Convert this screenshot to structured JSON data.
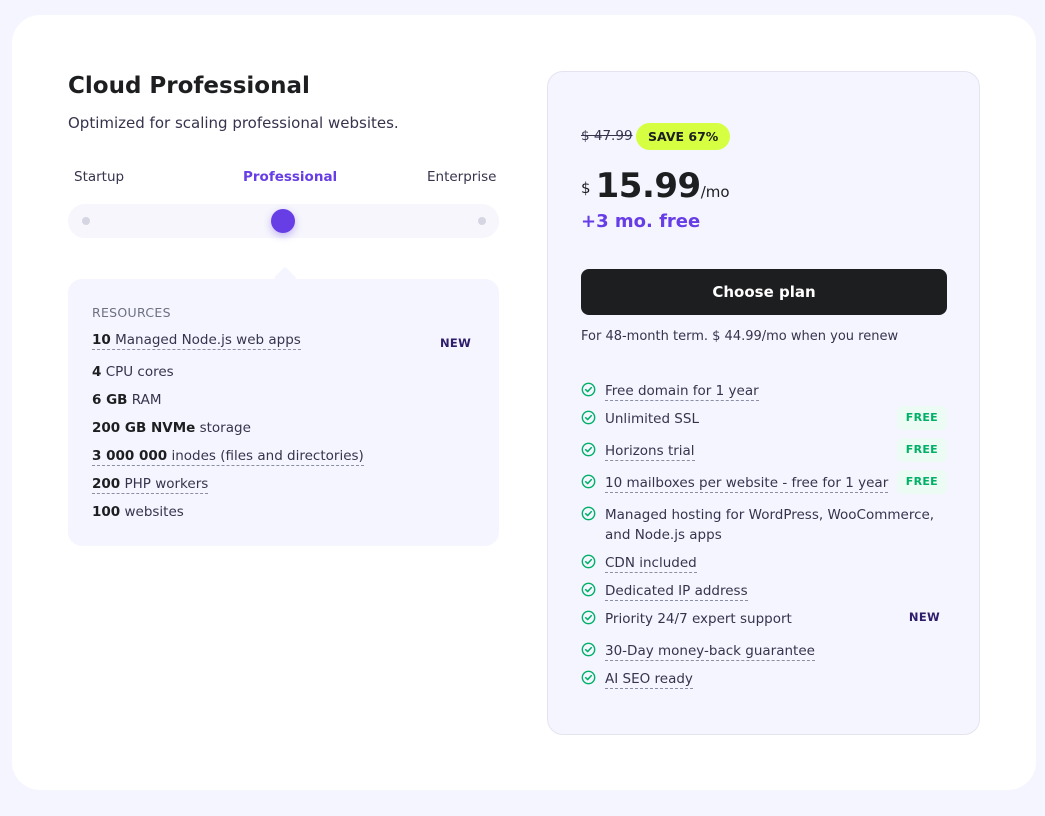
{
  "plan": {
    "title": "Cloud Professional",
    "subtitle": "Optimized for scaling professional websites."
  },
  "tiers": {
    "items": [
      "Startup",
      "Professional",
      "Enterprise"
    ],
    "selected": "Professional"
  },
  "resources": {
    "heading": "RESOURCES",
    "items": [
      {
        "bold": "10",
        "text": " Managed Node.js web apps",
        "tag": "NEW"
      },
      {
        "bold": "4",
        "text": " CPU cores"
      },
      {
        "bold": "6 GB",
        "text": " RAM"
      },
      {
        "bold": "200 GB NVMe",
        "text": " storage"
      },
      {
        "bold": "3 000 000",
        "text": " inodes (files and directories)"
      },
      {
        "bold": "200",
        "text": " PHP workers"
      },
      {
        "bold": "100",
        "text": " websites"
      }
    ]
  },
  "pricing": {
    "old_price": "$ 47.99",
    "save_badge": "SAVE 67%",
    "currency": "$",
    "amount": "15.99",
    "period": "/mo",
    "bonus": "+3 mo. free",
    "cta_label": "Choose plan",
    "term_note": "For 48-month term. $ 44.99/mo when you renew"
  },
  "features": [
    {
      "text": "Free domain for 1 year"
    },
    {
      "text": "Unlimited SSL",
      "tag": "FREE"
    },
    {
      "text": "Horizons trial",
      "tag": "FREE"
    },
    {
      "text": "10 mailboxes per website - free for 1 year",
      "tag": "FREE"
    },
    {
      "text": "Managed hosting for WordPress, WooCommerce, and Node.js apps"
    },
    {
      "text": "CDN included"
    },
    {
      "text": "Dedicated IP address"
    },
    {
      "text": "Priority 24/7 expert support",
      "tag": "NEW"
    },
    {
      "text": "30-Day money-back guarantee"
    },
    {
      "text": "AI SEO ready"
    }
  ],
  "colors": {
    "accent": "#673de6",
    "badge": "#d5ff40",
    "check": "#00b067",
    "button": "#1d1e20"
  }
}
